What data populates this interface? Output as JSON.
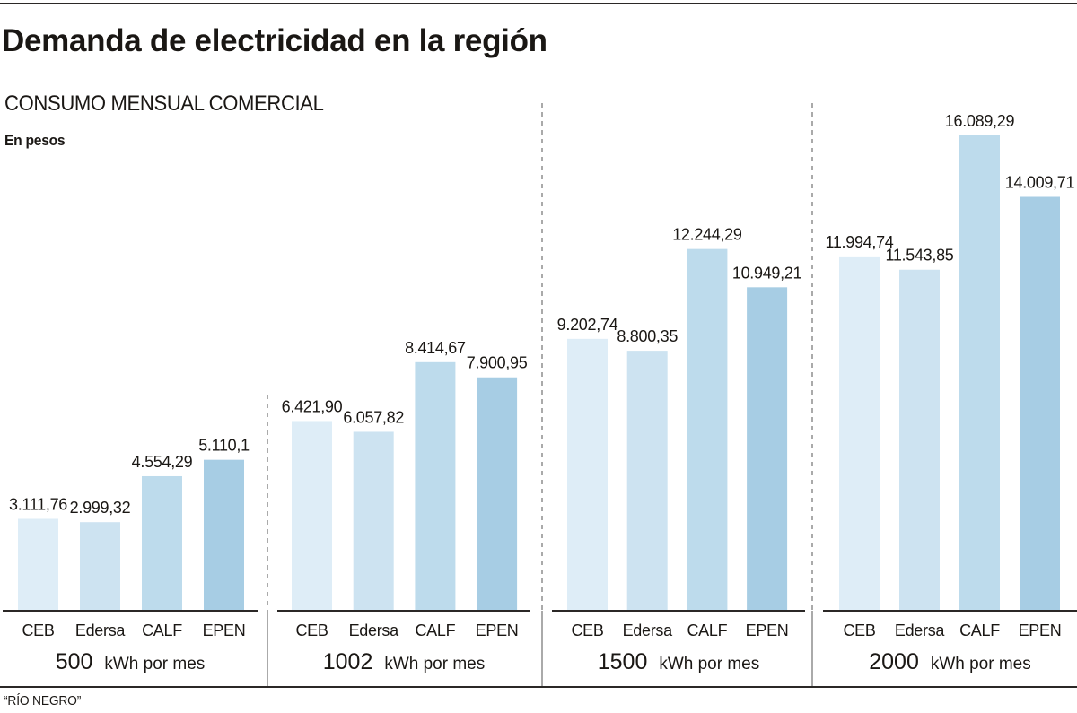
{
  "header": {
    "title": "Demanda de electricidad en la región",
    "subtitle": "CONSUMO MENSUAL COMERCIAL",
    "unit_note": "En pesos"
  },
  "footer": {
    "source": "“RÍO NEGRO”"
  },
  "chart_data": {
    "type": "bar",
    "title": "Demanda de electricidad en la región",
    "subtitle": "CONSUMO MENSUAL COMERCIAL",
    "ylabel": "En pesos",
    "xlabel": "kWh por mes",
    "unit_suffix": "kWh por mes",
    "categories": [
      "CEB",
      "Edersa",
      "CALF",
      "EPEN"
    ],
    "category_colors": [
      "#deedf7",
      "#cde3f1",
      "#bddbec",
      "#a7cde4"
    ],
    "ylim": [
      0,
      16089.29
    ],
    "grid": false,
    "legend": "none",
    "groups": [
      {
        "kwh": "500",
        "values": [
          3111.76,
          2999.32,
          4554.29,
          5110.1
        ],
        "labels": [
          "3.111,76",
          "2.999,32",
          "4.554,29",
          "5.110,1"
        ]
      },
      {
        "kwh": "1002",
        "values": [
          6421.9,
          6057.82,
          8414.67,
          7900.95
        ],
        "labels": [
          "6.421,90",
          "6.057,82",
          "8.414,67",
          "7.900,95"
        ]
      },
      {
        "kwh": "1500",
        "values": [
          9202.74,
          8800.35,
          12244.29,
          10949.21
        ],
        "labels": [
          "9.202,74",
          "8.800,35",
          "12.244,29",
          "10.949,21"
        ]
      },
      {
        "kwh": "2000",
        "values": [
          11994.74,
          11543.85,
          16089.29,
          14009.71
        ],
        "labels": [
          "11.994,74",
          "11.543,85",
          "16.089,29",
          "14.009,71"
        ]
      }
    ]
  }
}
